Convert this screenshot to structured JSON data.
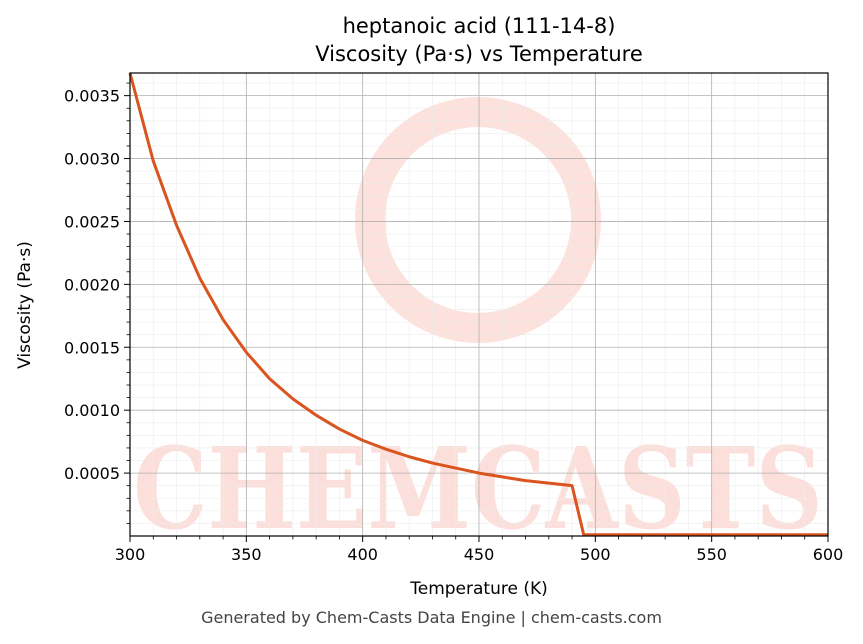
{
  "chart_data": {
    "type": "line",
    "title_line1": "heptanoic acid (111-14-8)",
    "title_line2": "Viscosity (Pa·s) vs Temperature",
    "xlabel": "Temperature (K)",
    "ylabel": "Viscosity (Pa·s)",
    "xlim": [
      300,
      600
    ],
    "ylim": [
      0,
      0.00368
    ],
    "x_ticks": [
      300,
      350,
      400,
      450,
      500,
      550,
      600
    ],
    "y_ticks": [
      0.0005,
      0.001,
      0.0015,
      0.002,
      0.0025,
      0.003,
      0.0035
    ],
    "x_tick_labels": [
      "300",
      "350",
      "400",
      "450",
      "500",
      "550",
      "600"
    ],
    "y_tick_labels": [
      "0.0005",
      "0.0010",
      "0.0015",
      "0.0020",
      "0.0025",
      "0.0030",
      "0.0035"
    ],
    "grid": true,
    "series": [
      {
        "color": "#d9541e",
        "x": [
          300,
          310,
          320,
          330,
          340,
          350,
          360,
          370,
          380,
          390,
          400,
          410,
          420,
          430,
          440,
          450,
          460,
          470,
          480,
          490,
          495,
          500,
          550,
          600
        ],
        "y": [
          0.00368,
          0.00298,
          0.00247,
          0.00205,
          0.00172,
          0.00146,
          0.00125,
          0.00109,
          0.00096,
          0.00085,
          0.00076,
          0.00069,
          0.00063,
          0.00058,
          0.00054,
          0.0005,
          0.00047,
          0.00044,
          0.00042,
          0.0004,
          1e-05,
          1e-05,
          1e-05,
          1e-05
        ]
      }
    ],
    "watermark_text": "CHEMCASTS",
    "watermark_color": "#fcdcd6"
  },
  "footer": "Generated by Chem-Casts Data Engine | chem-casts.com"
}
